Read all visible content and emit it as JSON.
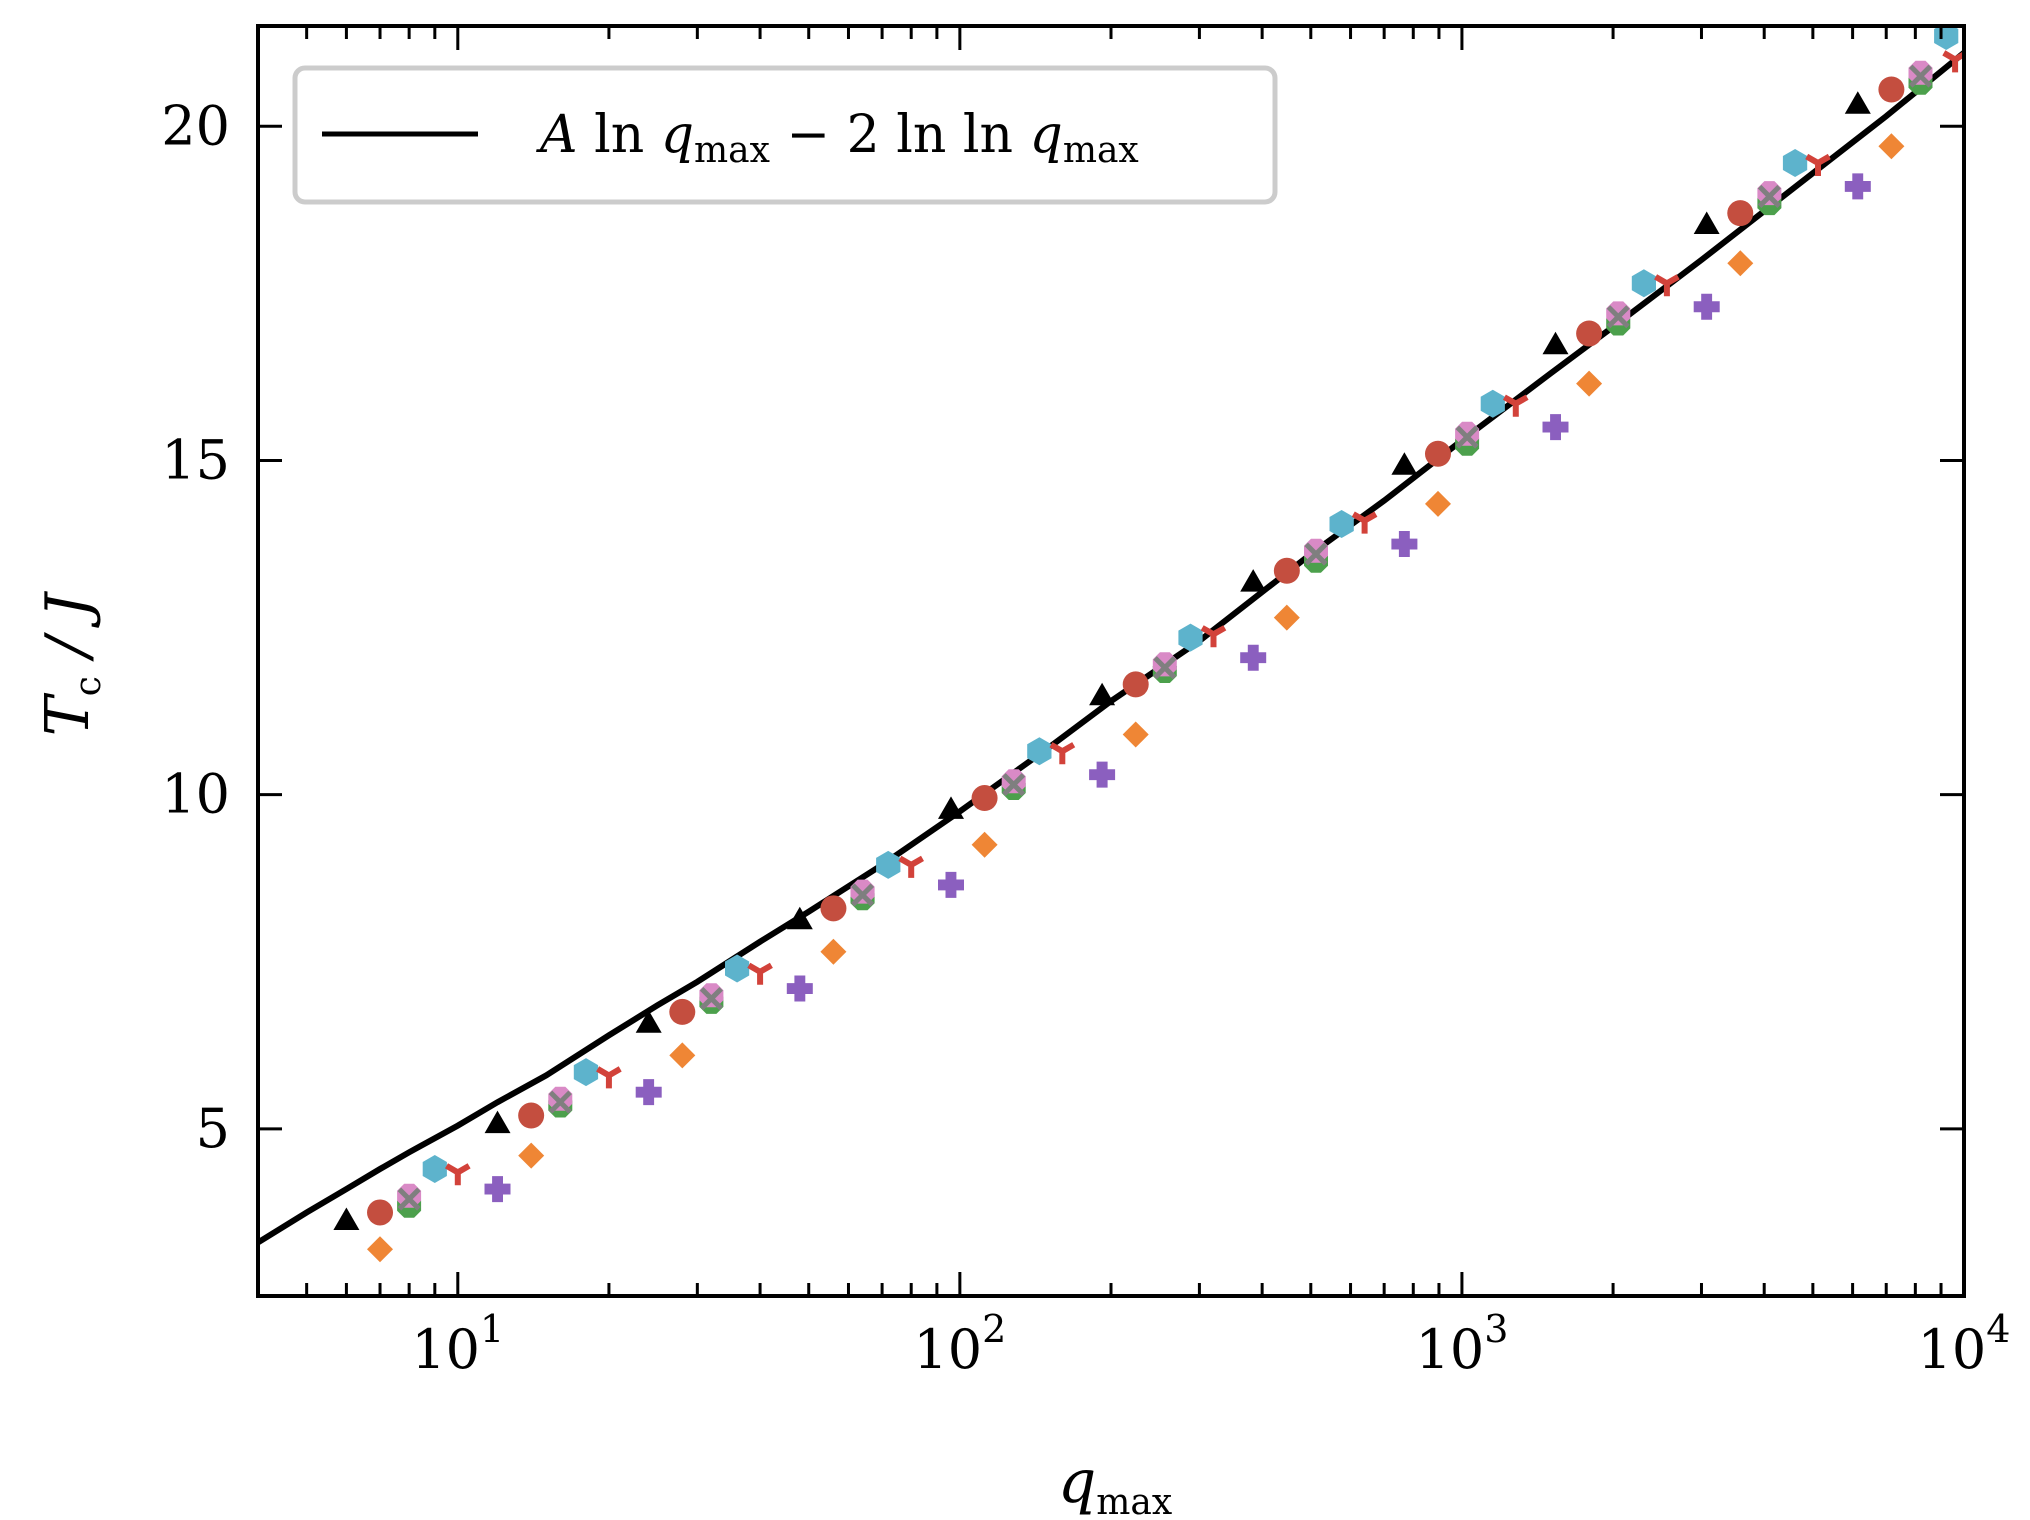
{
  "chart_data": {
    "type": "scatter",
    "x_scale": "log",
    "xlim": [
      4,
      10000
    ],
    "ylim": [
      2.5,
      21.5
    ],
    "xlabel": {
      "base": "q",
      "sub": "max"
    },
    "ylabel": {
      "base": "T",
      "sub": "c",
      "tail": " / J"
    },
    "x_ticks": [
      10,
      100,
      1000,
      10000
    ],
    "x_tick_labels": [
      {
        "base": "10",
        "exp": "1"
      },
      {
        "base": "10",
        "exp": "2"
      },
      {
        "base": "10",
        "exp": "3"
      },
      {
        "base": "10",
        "exp": "4"
      }
    ],
    "y_ticks": [
      5,
      10,
      15,
      20
    ],
    "y_tick_labels": [
      "5",
      "10",
      "15",
      "20"
    ],
    "grid": false,
    "legend": {
      "position": "top-left",
      "entry": {
        "p1": "A ",
        "ln1": "ln ",
        "q1": "q",
        "s1": "max",
        "p2": " − 2 ",
        "ln2": "ln ln ",
        "q2": "q",
        "s2": "max"
      }
    },
    "curve": {
      "color": "#000000",
      "x": [
        4,
        5,
        6,
        7,
        8,
        10,
        12,
        15,
        20,
        25,
        30,
        40,
        50,
        70,
        100,
        150,
        200,
        300,
        500,
        700,
        1000,
        1500,
        2000,
        3000,
        5000,
        7000,
        10000
      ],
      "y": [
        3.3,
        3.75,
        4.1,
        4.4,
        4.65,
        5.05,
        5.4,
        5.8,
        6.4,
        6.85,
        7.2,
        7.8,
        8.25,
        8.95,
        9.75,
        10.7,
        11.4,
        12.3,
        13.6,
        14.4,
        15.3,
        16.3,
        17.0,
        18.0,
        19.3,
        20.15,
        21.1
      ]
    },
    "series": [
      {
        "marker": "triangle",
        "color": "#000000",
        "x": [
          6,
          12,
          24,
          48,
          96,
          192,
          384,
          768,
          1536,
          3072,
          6144
        ],
        "y": [
          3.6,
          5.05,
          6.55,
          8.1,
          9.75,
          11.45,
          13.15,
          14.9,
          16.7,
          18.5,
          20.3
        ]
      },
      {
        "marker": "circle",
        "color": "#c44e3f",
        "x": [
          7,
          14,
          28,
          56,
          112,
          224,
          448,
          896,
          1792,
          3584,
          7168
        ],
        "y": [
          3.75,
          5.2,
          6.75,
          8.3,
          9.95,
          11.65,
          13.35,
          15.1,
          16.9,
          18.7,
          20.55
        ]
      },
      {
        "marker": "hexagon",
        "color": "#5db3cc",
        "x": [
          9,
          18,
          36,
          72,
          144,
          288,
          576,
          1152,
          2304,
          4608,
          9216
        ],
        "y": [
          4.4,
          5.85,
          7.4,
          8.95,
          10.65,
          12.35,
          14.05,
          15.85,
          17.65,
          19.45,
          21.35
        ]
      },
      {
        "marker": "tri-down",
        "color": "#d2423a",
        "x": [
          10,
          20,
          40,
          80,
          160,
          320,
          640,
          1280,
          2560,
          5120,
          9600
        ],
        "y": [
          4.35,
          5.8,
          7.35,
          8.95,
          10.65,
          12.4,
          14.1,
          15.85,
          17.65,
          19.45,
          21.0
        ]
      },
      {
        "marker": "cross",
        "color": "#8b5fbf",
        "x": [
          12,
          24,
          48,
          96,
          192,
          384,
          768,
          1536,
          3072,
          6144
        ],
        "y": [
          4.1,
          5.55,
          7.1,
          8.65,
          10.3,
          12.05,
          13.75,
          15.5,
          17.3,
          19.1
        ]
      },
      {
        "marker": "diamond",
        "color": "#ef8635",
        "x": [
          7,
          14,
          28,
          56,
          112,
          224,
          448,
          896,
          1792,
          3584,
          7168
        ],
        "y": [
          3.2,
          4.6,
          6.1,
          7.65,
          9.25,
          10.9,
          12.65,
          14.35,
          16.15,
          17.95,
          19.7
        ]
      },
      {
        "marker": "octagon",
        "color": "#4ca04c",
        "x": [
          8,
          16,
          32,
          64,
          128,
          256,
          512,
          1024,
          2048,
          4096,
          8192
        ],
        "y": [
          3.85,
          5.35,
          6.9,
          8.45,
          10.1,
          11.85,
          13.5,
          15.25,
          17.05,
          18.85,
          20.65
        ]
      },
      {
        "marker": "octagon",
        "color": "#d98ac6",
        "x": [
          8,
          16,
          32,
          64,
          128,
          256,
          512,
          1024,
          2048,
          4096,
          8192
        ],
        "y": [
          4.0,
          5.45,
          7.0,
          8.55,
          10.2,
          11.95,
          13.65,
          15.4,
          17.2,
          19.0,
          20.8
        ]
      },
      {
        "marker": "x",
        "color": "#7f7f7f",
        "x": [
          8,
          16,
          32,
          64,
          128,
          256,
          512,
          1024,
          2048,
          4096,
          8192
        ],
        "y": [
          3.95,
          5.4,
          6.95,
          8.5,
          10.15,
          11.9,
          13.6,
          15.35,
          17.15,
          18.95,
          20.75
        ]
      }
    ]
  }
}
